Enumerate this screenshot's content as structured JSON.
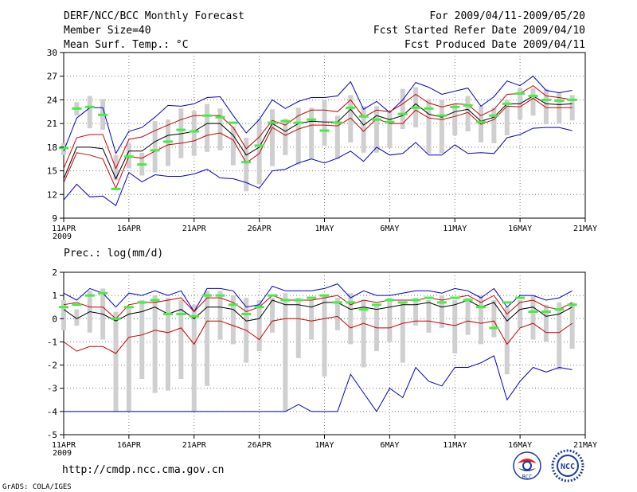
{
  "header": {
    "title": "DERF/NCC/BCC Monthly Forecast",
    "member_size": "Member Size=40",
    "variable": "Mean Surf. Temp.: °C",
    "period": "For 2009/04/11-2009/05/20",
    "start_date": "Fcst Started Refer Date 2009/04/10",
    "produced_date": "Fcst Produced Date 2009/04/11"
  },
  "footer": {
    "url": "http://cmdp.ncc.cma.gov.cn",
    "grads": "GrADS: COLA/IGES",
    "logo_bcc": "BCC",
    "logo_ncc": "NCC"
  },
  "colors": {
    "envelope": "#0000cc",
    "spread": "#cc0000",
    "mean": "#000000",
    "box": "#cfcfcf",
    "median": "#44ee44",
    "grid": "#777777"
  },
  "chart_data": [
    {
      "type": "line",
      "title": "Mean Surf. Temp.: °C",
      "x_tick_labels": [
        "11APR",
        "16APR",
        "21APR",
        "26APR",
        "1MAY",
        "6MAY",
        "11MAY",
        "16MAY",
        "21MAY"
      ],
      "x_year_label": "2009",
      "x_tick_days": [
        0,
        5,
        10,
        15,
        20,
        25,
        30,
        35,
        40
      ],
      "xlim": [
        0,
        40
      ],
      "ylim": [
        9,
        30
      ],
      "y_ticks": [
        9,
        12,
        15,
        18,
        21,
        24,
        27,
        30
      ],
      "grid": true,
      "x_days": [
        0,
        1,
        2,
        3,
        4,
        5,
        6,
        7,
        8,
        9,
        10,
        11,
        12,
        13,
        14,
        15,
        16,
        17,
        18,
        19,
        20,
        21,
        22,
        23,
        24,
        25,
        26,
        27,
        28,
        29,
        30,
        31,
        32,
        33,
        34,
        35,
        36,
        37,
        38,
        39
      ],
      "series": [
        {
          "name": "max",
          "values": [
            17.5,
            21.7,
            23.0,
            23.0,
            17.2,
            20.0,
            20.5,
            21.8,
            23.3,
            23.2,
            23.5,
            24.3,
            24.4,
            22.0,
            19.8,
            21.5,
            24.0,
            22.9,
            23.8,
            24.3,
            24.3,
            24.5,
            26.3,
            22.8,
            23.8,
            22.4,
            24.0,
            26.2,
            25.6,
            24.7,
            25.1,
            25.5,
            23.2,
            24.4,
            26.4,
            25.8,
            27.0,
            25.2,
            24.9,
            25.2
          ]
        },
        {
          "name": "upper",
          "values": [
            15.3,
            19.2,
            19.6,
            19.6,
            15.3,
            19.0,
            19.3,
            20.1,
            20.8,
            21.5,
            22.0,
            22.0,
            22.0,
            20.5,
            17.8,
            19.3,
            21.4,
            20.8,
            22.0,
            22.7,
            22.7,
            22.5,
            24.0,
            21.8,
            22.7,
            22.5,
            23.5,
            24.7,
            23.6,
            23.1,
            23.5,
            23.4,
            22.0,
            22.8,
            24.7,
            24.8,
            25.8,
            24.5,
            24.3,
            24.0
          ]
        },
        {
          "name": "mean",
          "values": [
            14.0,
            18.0,
            18.0,
            17.8,
            14.0,
            17.5,
            17.5,
            18.7,
            19.5,
            19.7,
            20.0,
            21.0,
            21.0,
            19.5,
            17.0,
            18.0,
            21.0,
            20.0,
            21.0,
            21.3,
            21.2,
            21.2,
            22.8,
            20.8,
            22.0,
            21.5,
            22.0,
            23.5,
            22.2,
            21.8,
            22.5,
            22.8,
            21.3,
            21.8,
            23.5,
            23.5,
            24.5,
            23.5,
            23.4,
            23.5
          ]
        },
        {
          "name": "lower",
          "values": [
            13.5,
            17.3,
            17.0,
            16.5,
            12.8,
            16.8,
            16.6,
            17.5,
            18.3,
            18.5,
            18.8,
            19.5,
            19.8,
            18.9,
            16.0,
            17.2,
            20.5,
            19.5,
            20.3,
            20.8,
            20.8,
            20.7,
            21.7,
            20.0,
            21.6,
            21.0,
            21.0,
            22.7,
            21.7,
            21.5,
            21.9,
            22.4,
            20.9,
            21.5,
            23.2,
            23.1,
            24.2,
            23.0,
            23.0,
            23.0
          ]
        },
        {
          "name": "min",
          "values": [
            11.3,
            13.3,
            11.7,
            11.8,
            10.6,
            14.8,
            13.6,
            14.5,
            14.3,
            14.3,
            14.6,
            15.2,
            14.1,
            14.0,
            13.5,
            12.8,
            15.0,
            15.2,
            16.0,
            16.5,
            16.0,
            16.6,
            17.5,
            16.2,
            18.0,
            17.0,
            17.2,
            18.6,
            17.0,
            17.0,
            18.3,
            17.2,
            17.3,
            17.2,
            19.2,
            19.6,
            20.4,
            20.5,
            20.5,
            20.1
          ]
        }
      ],
      "box_ranges": [
        [
          17.0,
          18.5
        ],
        [
          22.0,
          23.7
        ],
        [
          20.4,
          24.5
        ],
        [
          20.2,
          24.1
        ],
        [
          13.8,
          17.0
        ],
        [
          15.3,
          18.5
        ],
        [
          14.4,
          17.3
        ],
        [
          14.8,
          21.3
        ],
        [
          15.6,
          21.5
        ],
        [
          16.6,
          22.9
        ],
        [
          16.9,
          22.6
        ],
        [
          17.4,
          23.5
        ],
        [
          17.6,
          22.9
        ],
        [
          15.7,
          20.6
        ],
        [
          12.4,
          19.2
        ],
        [
          13.3,
          21.6
        ],
        [
          15.6,
          22.8
        ],
        [
          17.0,
          21.6
        ],
        [
          15.8,
          23.0
        ],
        [
          16.5,
          23.0
        ],
        [
          18.2,
          24.0
        ],
        [
          16.5,
          22.0
        ],
        [
          18.6,
          24.6
        ],
        [
          17.3,
          23.2
        ],
        [
          17.3,
          23.2
        ],
        [
          17.9,
          22.5
        ],
        [
          20.3,
          25.4
        ],
        [
          20.5,
          25.6
        ],
        [
          17.2,
          24.1
        ],
        [
          17.2,
          24.0
        ],
        [
          19.5,
          23.5
        ],
        [
          20.0,
          24.5
        ],
        [
          18.6,
          23.2
        ],
        [
          18.5,
          23.0
        ],
        [
          19.5,
          24.0
        ],
        [
          21.5,
          25.5
        ],
        [
          22.0,
          25.5
        ],
        [
          20.9,
          25.4
        ],
        [
          21.0,
          25.0
        ],
        [
          21.4,
          24.6
        ]
      ],
      "median_values": [
        17.9,
        22.9,
        23.1,
        22.1,
        12.7,
        16.8,
        15.8,
        17.6,
        18.7,
        20.2,
        20.0,
        22.0,
        21.8,
        21.1,
        16.1,
        18.2,
        21.1,
        21.3,
        21.1,
        21.5,
        20.1,
        21.1,
        23.0,
        21.9,
        21.5,
        21.2,
        22.2,
        23.0,
        22.9,
        22.0,
        23.1,
        23.3,
        21.2,
        22.0,
        23.5,
        24.8,
        24.5,
        24.0,
        23.9,
        24.0
      ]
    },
    {
      "type": "line",
      "title": "Prec.: log(mm/d)",
      "x_tick_labels": [
        "11APR",
        "16APR",
        "21APR",
        "26APR",
        "1MAY",
        "6MAY",
        "11MAY",
        "16MAY",
        "21MAY"
      ],
      "x_year_label": "2009",
      "x_tick_days": [
        0,
        5,
        10,
        15,
        20,
        25,
        30,
        35,
        40
      ],
      "xlim": [
        0,
        40
      ],
      "ylim": [
        -5,
        2
      ],
      "y_ticks": [
        -5,
        -4,
        -3,
        -2,
        -1,
        0,
        1,
        2
      ],
      "grid": true,
      "x_days": [
        0,
        1,
        2,
        3,
        4,
        5,
        6,
        7,
        8,
        9,
        10,
        11,
        12,
        13,
        14,
        15,
        16,
        17,
        18,
        19,
        20,
        21,
        22,
        23,
        24,
        25,
        26,
        27,
        28,
        29,
        30,
        31,
        32,
        33,
        34,
        35,
        36,
        37,
        38,
        39
      ],
      "series": [
        {
          "name": "max",
          "values": [
            1.1,
            0.8,
            1.3,
            1.1,
            0.5,
            1.1,
            1.0,
            1.2,
            1.0,
            1.2,
            0.3,
            1.3,
            1.3,
            1.2,
            0.5,
            0.6,
            1.4,
            1.2,
            1.2,
            1.2,
            1.3,
            1.5,
            0.9,
            1.2,
            1.0,
            1.0,
            1.1,
            1.2,
            1.2,
            1.1,
            1.3,
            1.2,
            0.9,
            1.3,
            0.5,
            1.0,
            1.0,
            0.8,
            0.9,
            1.2
          ]
        },
        {
          "name": "upper",
          "values": [
            0.6,
            0.7,
            0.5,
            0.5,
            0.0,
            0.6,
            0.7,
            0.7,
            0.8,
            0.9,
            0.3,
            0.9,
            0.9,
            0.7,
            0.3,
            0.5,
            1.0,
            0.8,
            0.8,
            0.8,
            0.9,
            1.0,
            0.6,
            0.8,
            0.7,
            0.8,
            0.8,
            0.8,
            0.9,
            0.8,
            0.9,
            1.0,
            0.7,
            1.0,
            0.2,
            0.7,
            0.8,
            0.5,
            0.4,
            0.7
          ]
        },
        {
          "name": "mean",
          "values": [
            0.4,
            0.0,
            0.3,
            0.2,
            -0.1,
            0.2,
            0.3,
            0.5,
            0.2,
            0.4,
            0.0,
            0.5,
            0.5,
            0.4,
            -0.1,
            0.0,
            0.8,
            0.6,
            0.6,
            0.5,
            0.7,
            0.7,
            0.4,
            0.5,
            0.4,
            0.5,
            0.6,
            0.6,
            0.7,
            0.5,
            0.6,
            0.8,
            0.5,
            0.7,
            -0.1,
            0.4,
            0.5,
            0.1,
            0.2,
            0.5
          ]
        },
        {
          "name": "lower",
          "values": [
            -1.0,
            -1.4,
            -1.2,
            -1.2,
            -1.5,
            -0.8,
            -0.7,
            -0.5,
            -0.6,
            -0.4,
            -1.1,
            -0.1,
            -0.1,
            -0.3,
            -0.5,
            -0.9,
            -0.1,
            0.0,
            0.0,
            -0.1,
            0.0,
            0.1,
            -0.4,
            -0.2,
            -0.4,
            -0.4,
            -0.2,
            -0.1,
            -0.1,
            -0.2,
            -0.3,
            -0.1,
            -0.2,
            -0.1,
            -1.1,
            -0.4,
            -0.2,
            -0.6,
            -0.6,
            -0.2
          ]
        },
        {
          "name": "min",
          "values": [
            -4.0,
            -4.0,
            -4.0,
            -4.0,
            -4.0,
            -4.0,
            -4.0,
            -4.0,
            -4.0,
            -4.0,
            -4.0,
            -4.0,
            -4.0,
            -4.0,
            -4.0,
            -4.0,
            -4.0,
            -4.0,
            -3.7,
            -4.0,
            -4.0,
            -4.0,
            -2.4,
            -3.2,
            -4.0,
            -3.0,
            -3.4,
            -2.1,
            -2.7,
            -2.9,
            -2.1,
            -2.1,
            -1.9,
            -1.6,
            -3.5,
            -2.7,
            -2.1,
            -2.3,
            -2.1,
            -2.2
          ]
        }
      ],
      "box_ranges": [
        [
          -0.5,
          0.8
        ],
        [
          -0.3,
          0.4
        ],
        [
          -0.6,
          1.2
        ],
        [
          -0.9,
          1.3
        ],
        [
          -4.0,
          0.3
        ],
        [
          -4.0,
          0.5
        ],
        [
          -2.6,
          0.8
        ],
        [
          -3.2,
          1.0
        ],
        [
          -3.1,
          0.9
        ],
        [
          -2.6,
          0.8
        ],
        [
          -4.0,
          0.6
        ],
        [
          -2.9,
          1.2
        ],
        [
          -0.9,
          1.2
        ],
        [
          -1.1,
          1.0
        ],
        [
          -1.9,
          0.9
        ],
        [
          -1.4,
          0.8
        ],
        [
          -0.6,
          0.9
        ],
        [
          -4.0,
          1.1
        ],
        [
          -1.7,
          0.9
        ],
        [
          -0.9,
          0.8
        ],
        [
          -2.5,
          1.0
        ],
        [
          -0.5,
          0.9
        ],
        [
          -1.1,
          1.1
        ],
        [
          -2.1,
          0.8
        ],
        [
          -1.4,
          0.6
        ],
        [
          -1.0,
          0.9
        ],
        [
          -1.9,
          0.7
        ],
        [
          -0.3,
          0.9
        ],
        [
          -0.6,
          0.8
        ],
        [
          -0.4,
          1.0
        ],
        [
          -1.5,
          0.8
        ],
        [
          -0.7,
          0.9
        ],
        [
          -1.1,
          1.0
        ],
        [
          -0.8,
          0.8
        ],
        [
          -2.4,
          0.5
        ],
        [
          -0.4,
          0.8
        ],
        [
          -0.9,
          1.0
        ],
        [
          -1.0,
          0.6
        ],
        [
          -2.2,
          0.7
        ],
        [
          -1.3,
          0.7
        ]
      ],
      "median_values": [
        0.5,
        0.6,
        1.0,
        1.1,
        0.0,
        0.5,
        0.7,
        0.8,
        0.2,
        0.2,
        0.1,
        1.0,
        1.0,
        0.6,
        0.2,
        0.5,
        1.0,
        0.8,
        0.8,
        0.9,
        1.0,
        0.7,
        0.7,
        0.4,
        0.6,
        0.8,
        0.7,
        0.8,
        0.9,
        0.7,
        0.9,
        0.8,
        0.5,
        -0.4,
        0.7,
        0.9,
        0.3,
        0.3,
        0.4,
        0.6
      ]
    }
  ]
}
